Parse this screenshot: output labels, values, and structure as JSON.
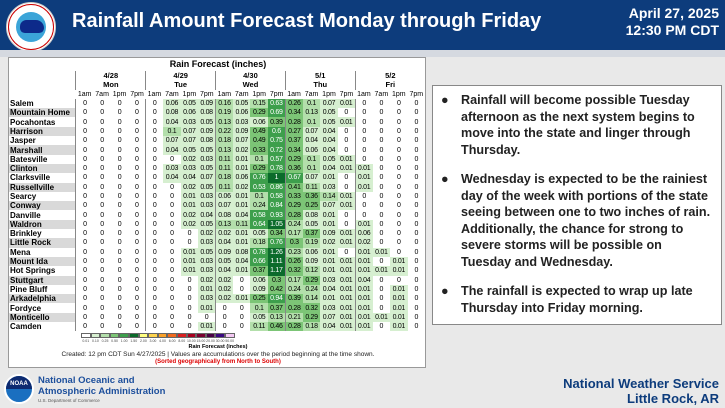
{
  "header": {
    "title": "Rainfall Amount Forecast Monday through Friday",
    "date": "April 27, 2025",
    "time": "12:30 PM CDT",
    "logo_text": "NATIONAL WEATHER SERVICE"
  },
  "table": {
    "title": "Rain Forecast (inches)",
    "days": [
      {
        "date": "4/28",
        "day": "Mon"
      },
      {
        "date": "4/29",
        "day": "Tue"
      },
      {
        "date": "4/30",
        "day": "Wed"
      },
      {
        "date": "5/1",
        "day": "Thu"
      },
      {
        "date": "5/2",
        "day": "Fri"
      }
    ],
    "times": [
      "1am",
      "7am",
      "1pm",
      "7pm"
    ],
    "rows": [
      {
        "name": "Salem",
        "v": [
          0,
          0,
          0,
          0,
          0,
          0.06,
          0.05,
          0.09,
          0.16,
          0.05,
          0.15,
          0.63,
          0.26,
          0.1,
          0.07,
          0.01,
          0,
          0,
          0,
          0
        ]
      },
      {
        "name": "Mountain Home",
        "v": [
          0,
          0,
          0,
          0,
          0,
          0.08,
          0.06,
          0.08,
          0.19,
          0.06,
          0.29,
          0.69,
          0.34,
          0.13,
          0.05,
          0,
          0,
          0,
          0,
          0
        ]
      },
      {
        "name": "Pocahontas",
        "v": [
          0,
          0,
          0,
          0,
          0,
          0.04,
          0.03,
          0.05,
          0.13,
          0.03,
          0.06,
          0.39,
          0.28,
          0.1,
          0.05,
          0.01,
          0,
          0,
          0,
          0
        ]
      },
      {
        "name": "Harrison",
        "v": [
          0,
          0,
          0,
          0,
          0,
          0.1,
          0.07,
          0.09,
          0.22,
          0.09,
          0.49,
          0.6,
          0.27,
          0.07,
          0.04,
          0,
          0,
          0,
          0,
          0
        ]
      },
      {
        "name": "Jasper",
        "v": [
          0,
          0,
          0,
          0,
          0,
          0.07,
          0.07,
          0.08,
          0.18,
          0.07,
          0.49,
          0.75,
          0.37,
          0.04,
          0.04,
          0,
          0,
          0,
          0,
          0
        ]
      },
      {
        "name": "Marshall",
        "v": [
          0,
          0,
          0,
          0,
          0,
          0.04,
          0.05,
          0.05,
          0.13,
          0.02,
          0.33,
          0.72,
          0.34,
          0.06,
          0.04,
          0,
          0,
          0,
          0,
          0
        ]
      },
      {
        "name": "Batesville",
        "v": [
          0,
          0,
          0,
          0,
          0,
          0,
          0.02,
          0.03,
          0.11,
          0.01,
          0.1,
          0.57,
          0.29,
          0.1,
          0.05,
          0.01,
          0,
          0,
          0,
          0
        ]
      },
      {
        "name": "Clinton",
        "v": [
          0,
          0,
          0,
          0,
          0,
          0.03,
          0.03,
          0.05,
          0.11,
          0.01,
          0.29,
          0.78,
          0.36,
          0.1,
          0.04,
          0.01,
          0.01,
          0,
          0,
          0
        ]
      },
      {
        "name": "Clarksville",
        "v": [
          0,
          0,
          0,
          0,
          0,
          0.04,
          0.04,
          0.07,
          0.18,
          0.06,
          0.76,
          1.0,
          0.67,
          0.07,
          0.01,
          0,
          0.01,
          0,
          0,
          0
        ]
      },
      {
        "name": "Russellville",
        "v": [
          0,
          0,
          0,
          0,
          0,
          0,
          0.02,
          0.05,
          0.11,
          0.02,
          0.53,
          0.86,
          0.41,
          0.11,
          0.03,
          0,
          0.01,
          0,
          0,
          0
        ]
      },
      {
        "name": "Searcy",
        "v": [
          0,
          0,
          0,
          0,
          0,
          0,
          0.01,
          0.03,
          0.06,
          0.01,
          0.1,
          0.58,
          0.33,
          0.36,
          0.14,
          0.01,
          0,
          0,
          0,
          0
        ]
      },
      {
        "name": "Conway",
        "v": [
          0,
          0,
          0,
          0,
          0,
          0,
          0.01,
          0.03,
          0.07,
          0.01,
          0.24,
          0.84,
          0.29,
          0.25,
          0.07,
          0.01,
          0,
          0,
          0,
          0
        ]
      },
      {
        "name": "Danville",
        "v": [
          0,
          0,
          0,
          0,
          0,
          0,
          0.02,
          0.04,
          0.08,
          0.04,
          0.58,
          0.93,
          0.28,
          0.08,
          0.01,
          0,
          0,
          0,
          0,
          0
        ]
      },
      {
        "name": "Waldron",
        "v": [
          0,
          0,
          0,
          0,
          0,
          0,
          0.02,
          0.05,
          0.13,
          0.11,
          0.64,
          1.05,
          0.24,
          0.05,
          0.01,
          0,
          0.01,
          0,
          0,
          0
        ]
      },
      {
        "name": "Brinkley",
        "v": [
          0,
          0,
          0,
          0,
          0,
          0,
          0,
          0.02,
          0.02,
          0.01,
          0.05,
          0.34,
          0.17,
          0.37,
          0.09,
          0.01,
          0.06,
          0,
          0,
          0
        ]
      },
      {
        "name": "Little Rock",
        "v": [
          0,
          0,
          0,
          0,
          0,
          0,
          0,
          0.03,
          0.04,
          0.01,
          0.18,
          0.76,
          0.3,
          0.19,
          0.02,
          0.01,
          0.02,
          0,
          0,
          0
        ]
      },
      {
        "name": "Mena",
        "v": [
          0,
          0,
          0,
          0,
          0,
          0,
          0.01,
          0.05,
          0.09,
          0.08,
          0.78,
          1.26,
          0.23,
          0.06,
          0.01,
          0,
          0.01,
          0.01,
          0,
          0
        ]
      },
      {
        "name": "Mount Ida",
        "v": [
          0,
          0,
          0,
          0,
          0,
          0,
          0.01,
          0.03,
          0.05,
          0.04,
          0.66,
          1.11,
          0.26,
          0.09,
          0.01,
          0.01,
          0.01,
          0,
          0.01,
          0
        ]
      },
      {
        "name": "Hot Springs",
        "v": [
          0,
          0,
          0,
          0,
          0,
          0,
          0.01,
          0.03,
          0.04,
          0.01,
          0.37,
          1.17,
          0.32,
          0.12,
          0.01,
          0.01,
          0.01,
          0.01,
          0.01,
          0
        ]
      },
      {
        "name": "Stuttgart",
        "v": [
          0,
          0,
          0,
          0,
          0,
          0,
          0,
          0.02,
          0.02,
          0,
          0.06,
          0.3,
          0.17,
          0.29,
          0.03,
          0.01,
          0.04,
          0,
          0,
          0
        ]
      },
      {
        "name": "Pine Bluff",
        "v": [
          0,
          0,
          0,
          0,
          0,
          0,
          0,
          0.01,
          0.02,
          0,
          0.09,
          0.42,
          0.24,
          0.24,
          0.04,
          0.01,
          0.01,
          0,
          0.01,
          0
        ]
      },
      {
        "name": "Arkadelphia",
        "v": [
          0,
          0,
          0,
          0,
          0,
          0,
          0,
          0.03,
          0.02,
          0.01,
          0.25,
          0.94,
          0.39,
          0.14,
          0.01,
          0.01,
          0.01,
          0,
          0.01,
          0
        ]
      },
      {
        "name": "Fordyce",
        "v": [
          0,
          0,
          0,
          0,
          0,
          0,
          0,
          0.01,
          0,
          0,
          0.1,
          0.37,
          0.28,
          0.32,
          0.03,
          0.01,
          0.01,
          0,
          0.01,
          0
        ]
      },
      {
        "name": "Monticello",
        "v": [
          0,
          0,
          0,
          0,
          0,
          0,
          0,
          0,
          0,
          0,
          0.05,
          0.13,
          0.21,
          0.29,
          0.07,
          0.01,
          0.01,
          0.01,
          0.01,
          0
        ]
      },
      {
        "name": "Camden",
        "v": [
          0,
          0,
          0,
          0,
          0,
          0,
          0,
          0.01,
          0,
          0,
          0.11,
          0.46,
          0.28,
          0.18,
          0.04,
          0.01,
          0.01,
          0,
          0.01,
          0
        ]
      }
    ],
    "legend": {
      "label": "Rain Forecast (inches)",
      "ticks": [
        "0.01",
        "0.10",
        "0.25",
        "0.50",
        "1.00",
        "1.50",
        "2.00",
        "3.00",
        "4.00",
        "6.00",
        "8.00",
        "10.00",
        "15.00",
        "20.00",
        "30.00",
        "50.00"
      ],
      "colors": [
        "#ffffff",
        "#d6efd0",
        "#b3dfab",
        "#7cc576",
        "#3d9f4c",
        "#0b6b2b",
        "#ffff80",
        "#fcd34d",
        "#f9a12a",
        "#f06a1e",
        "#d82020",
        "#a8001e",
        "#7a0030",
        "#4a0045",
        "#3a0880",
        "#f4c8f4"
      ]
    },
    "created": "Created: 12 pm CDT Sun 4/27/2025  |  Values are accumulations over the period beginning at the time shown.",
    "sorted": "(Sorted geographically from North to South)"
  },
  "bullets": [
    "Rainfall will become possible Tuesday afternoon as the next system begins to move into the state and linger through Thursday.",
    "Wednesday is expected to be the rainiest day of the week with portions of the state seeing between one to two inches of rain. Additionally, the chance for strong to severe storms will be possible on Tuesday and Wednesday.",
    "The rainfall is expected to wrap up late Thursday into Friday morning."
  ],
  "footer": {
    "noaa_line1": "National Oceanic and",
    "noaa_line2": "Atmospheric Administration",
    "dept": "U.S. Department of Commerce",
    "nws": "National Weather Service",
    "office": "Little Rock, AR",
    "noaa_logo_text": "NOAA"
  }
}
